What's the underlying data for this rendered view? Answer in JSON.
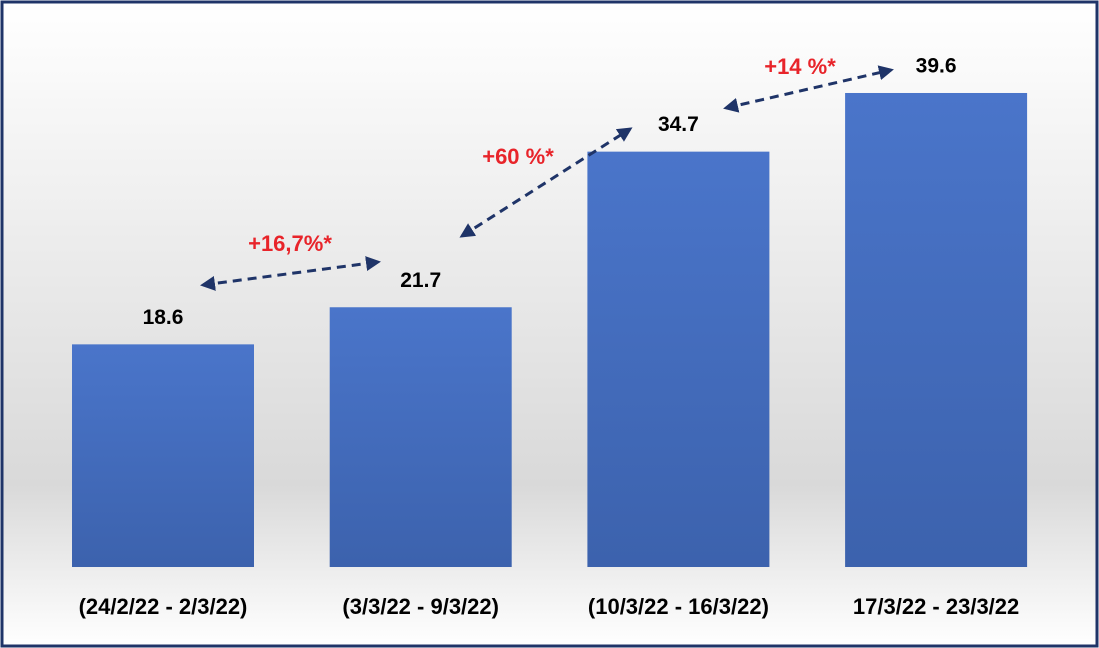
{
  "chart_data": {
    "type": "bar",
    "categories": [
      "(24/2/22 - 2/3/22)",
      "(3/3/22 - 9/3/22)",
      "(10/3/22 - 16/3/22)",
      "17/3/22 - 23/3/22"
    ],
    "values": [
      18.6,
      21.7,
      34.7,
      39.6
    ],
    "color": "#4670c4",
    "annotations": [
      "+16,7%*",
      "+60 %*",
      "+14 %*"
    ]
  }
}
